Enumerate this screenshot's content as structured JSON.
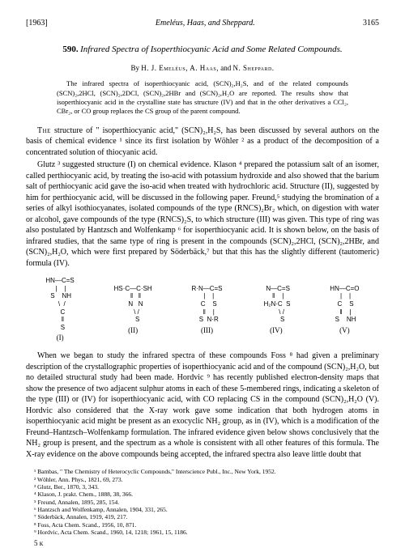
{
  "header": {
    "year": "[1963]",
    "authors": "Emeléus, Haas, and Sheppard.",
    "page": "3165"
  },
  "title": {
    "number": "590.",
    "text": "Infrared Spectra of Isoperthiocyanic Acid and Some Related Compounds."
  },
  "byline": {
    "prefix": "By",
    "authors": "H. J. Emeléus, A. Haas,",
    "and": "and",
    "last": "N. Sheppard."
  },
  "abstract": "The infrared spectra of isoperthiocyanic acid, (SCN)₂,H₂S, and of the related compounds (SCN)₂,2HCl, (SCN)₂,2DCl, (SCN)₂,2HBr and (SCN)₂,H₂O are reported. The results show that isoperthiocyanic acid in the crystalline state has structure (IV) and that in the other derivatives a CCl₂, CBr₂, or CO group replaces the CS group of the parent compound.",
  "para1": "The structure of \" isoperthiocyanic acid,\" (SCN)₂,H₂S, has been discussed by several authors on the basis of chemical evidence ¹ since its first isolation by Wöhler ² as a product of the decomposition of a concentrated solution of thiocyanic acid.",
  "para2": "Glutz ³ suggested structure (I) on chemical evidence. Klason ⁴ prepared the potassium salt of an isomer, called perthiocyanic acid, by treating the iso-acid with potassium hydroxide and also showed that the barium salt of perthiocyanic acid gave the iso-acid when treated with hydrochloric acid. Structure (II), suggested by him for perthiocyanic acid, will be discussed in the following paper. Freund,⁵ studying the bromination of a series of alkyl isothiocyanates, isolated compounds of the type (RNCS)₂Br₂ which, on digestion with water or alcohol, gave compounds of the type (RNCS)₂S, to which structure (III) was given. This type of ring was also postulated by Hantzsch and Wolfenkamp ⁶ for isoperthiocyanic acid. It is shown below, on the basis of infrared studies, that the same type of ring is present in the compounds (SCN)₂,2HCl, (SCN)₂,2HBr, and (SCN)₂,H₂O, which were first prepared by Söderbäck,⁷ but that this has the slightly different (tautomeric) formula (IV).",
  "structures": [
    {
      "top": "HN—C=S\n |    |\n S    NH\n  \\  /\n   C\n   ‖\n   S",
      "label": "(I)"
    },
    {
      "top": "HS·C—C·SH\n   ‖   ‖\n   N   N\n    \\ /\n     S",
      "label": "(II)"
    },
    {
      "top": "R·N—C=S\n  |    |\n  C    S\n  ‖    |\n  S  N·R",
      "label": "(III)"
    },
    {
      "top": "  N—C=S\n  ‖    |\n H₂N·C  S\n      \\ /\n       S",
      "label": "(IV)"
    },
    {
      "top": "HN—C=O\n |    |\n C    S\n ‖    |\n S    NH",
      "label": "(V)"
    }
  ],
  "para3": "When we began to study the infrared spectra of these compounds Foss ⁸ had given a preliminary description of the crystallographic properties of isoperthiocyanic acid and of the compound (SCN)₂,H₂O, but no detailed structural study had been made. Hordvic ⁹ has recently published electron-density maps that show the presence of two adjacent sulphur atoms in each of these 5-membered rings, indicating a skeleton of the type (III) or (IV) for isoperthiocyanic acid, with CO replacing CS in the compound (SCN)₂,H₂O (V). Hordvic also considered that the X-ray work gave some indication that both hydrogen atoms in isoperthiocyanic acid might be present as an exocyclic NH₂ group, as in (IV), which is a modification of the Freund–Hantzsch–Wolfenkamp formulation. The infrared evidence given below shows conclusively that the NH₂ group is present, and the spectrum as a whole is consistent with all other features of this formula. The X-ray evidence on the above compounds being accepted, the infrared spectra also leave little doubt that",
  "footnotes": [
    "¹ Bambas, \" The Chemistry of Heterocyclic Compounds,\" Interscience Publ., Inc., New York, 1952.",
    "² Wöhler, Ann. Phys., 1821, 69, 273.",
    "³ Glutz, Ber., 1870, 3, 343.",
    "⁴ Klason, J. prakt. Chem., 1888, 38, 366.",
    "⁵ Freund, Annalen, 1895, 285, 154.",
    "⁶ Hantzsch and Wolfenkamp, Annalen, 1904, 331, 265.",
    "⁷ Söderbäck, Annalen, 1919, 419, 217.",
    "⁸ Foss, Acta Chem. Scand., 1956, 10, 871.",
    "⁹ Hordvic, Acta Chem. Scand., 1960, 14, 1218; 1961, 15, 1186."
  ],
  "footer_mark": "5 ᴋ"
}
